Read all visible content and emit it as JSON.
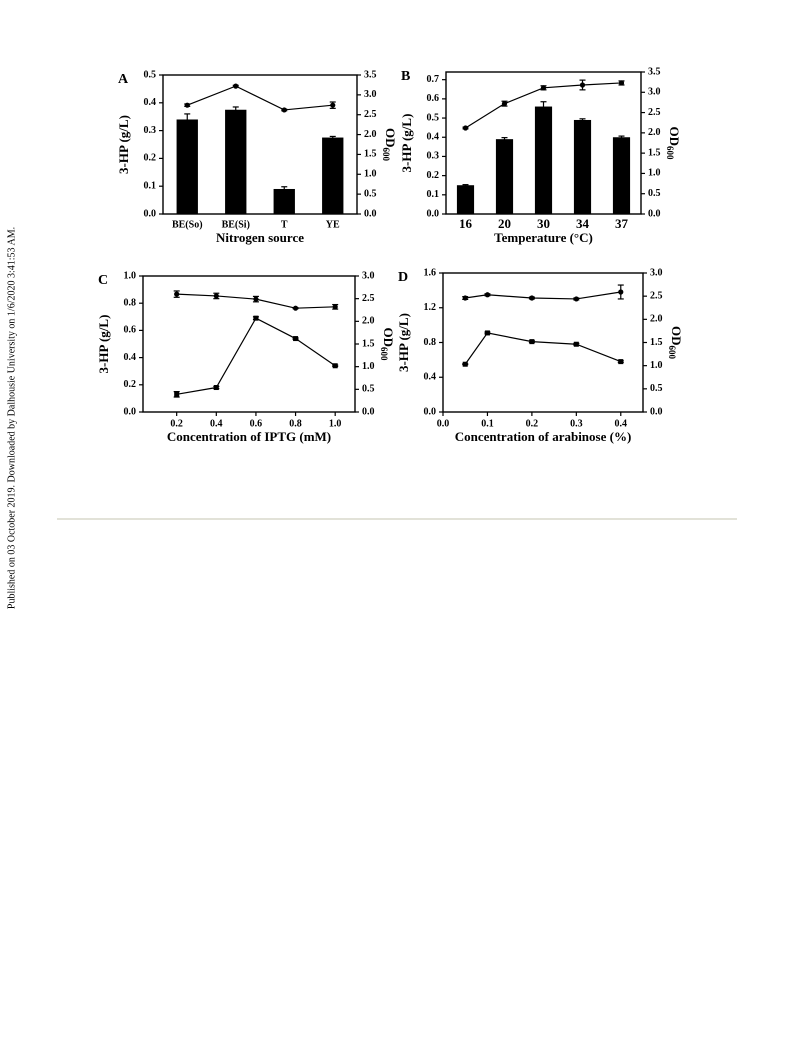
{
  "side_note": "Published on 03 October 2019. Downloaded by Dalhousie University on 1/6/2020 3:41:53 AM.",
  "chart_data": [
    {
      "type": "bar",
      "panel": "A",
      "xlabel": "Nitrogen source",
      "ylabel": "3-HP (g/L)",
      "y2label": {
        "text": "OD",
        "sub": "600"
      },
      "categories": [
        "BE(So)",
        "BE(Si)",
        "T",
        "YE"
      ],
      "ylim": [
        0,
        0.5
      ],
      "yticks": [
        {
          "value": 0,
          "label": "0.0"
        },
        0.1,
        0.2,
        0.3,
        0.4,
        0.5
      ],
      "y2lim": [
        0,
        3.5
      ],
      "y2ticks": [
        {
          "value": 0,
          "label": "0.0"
        },
        0.5,
        {
          "value": 1,
          "label": "1.0"
        },
        1.5,
        {
          "value": 2,
          "label": "2.0"
        },
        2.5,
        {
          "value": 3,
          "label": "3.0"
        },
        3.5
      ],
      "series": [
        {
          "name": "3-HP",
          "kind": "bar",
          "color": "#000000",
          "values": [
            0.34,
            0.375,
            0.09,
            0.275
          ],
          "errors": [
            0.02,
            0.01,
            0.008,
            0.004
          ]
        },
        {
          "name": "OD600",
          "kind": "line",
          "marker": "circle",
          "axis": "y2",
          "color": "#000000",
          "values": [
            2.74,
            3.22,
            2.62,
            2.74
          ],
          "errors": [
            0.03,
            0.02,
            0.02,
            0.08
          ]
        }
      ]
    },
    {
      "type": "bar",
      "panel": "B",
      "xlabel": "Temperature (°C)",
      "ylabel": "3-HP (g/L)",
      "y2label": {
        "text": "OD",
        "sub": "600"
      },
      "categories": [
        "16",
        "20",
        "30",
        "34",
        "37"
      ],
      "ylim": [
        0,
        0.74
      ],
      "yticks": [
        {
          "value": 0,
          "label": "0.0"
        },
        0.1,
        0.2,
        0.3,
        0.4,
        0.5,
        0.6,
        0.7
      ],
      "y2lim": [
        0,
        3.5
      ],
      "y2ticks": [
        {
          "value": 0,
          "label": "0.0"
        },
        0.5,
        {
          "value": 1,
          "label": "1.0"
        },
        1.5,
        {
          "value": 2,
          "label": "2.0"
        },
        2.5,
        {
          "value": 3,
          "label": "3.0"
        },
        3.5
      ],
      "series": [
        {
          "name": "3-HP",
          "kind": "bar",
          "color": "#000000",
          "values": [
            0.15,
            0.39,
            0.56,
            0.49,
            0.4
          ],
          "errors": [
            0.003,
            0.008,
            0.025,
            0.006,
            0.006
          ]
        },
        {
          "name": "OD600",
          "kind": "line",
          "marker": "circle",
          "axis": "y2",
          "color": "#000000",
          "values": [
            2.12,
            2.72,
            3.11,
            3.18,
            3.23
          ],
          "errors": [
            0.02,
            0.06,
            0.05,
            0.12,
            0.05
          ]
        }
      ]
    },
    {
      "type": "line",
      "panel": "C",
      "xlabel": "Concentration of IPTG (mM)",
      "ylabel": "3-HP (g/L)",
      "y2label": {
        "text": "OD",
        "sub": "600"
      },
      "x": [
        0.2,
        0.4,
        0.6,
        0.8,
        1.0
      ],
      "xlim": [
        0.03,
        1.1
      ],
      "xticks": [
        0.2,
        0.4,
        0.6,
        0.8,
        {
          "value": 1,
          "label": "1.0"
        }
      ],
      "ylim": [
        0,
        1
      ],
      "yticks": [
        {
          "value": 0,
          "label": "0.0"
        },
        0.2,
        0.4,
        0.6,
        0.8,
        {
          "value": 1,
          "label": "1.0"
        }
      ],
      "y2lim": [
        0,
        3
      ],
      "y2ticks": [
        {
          "value": 0,
          "label": "0.0"
        },
        0.5,
        {
          "value": 1,
          "label": "1.0"
        },
        1.5,
        {
          "value": 2,
          "label": "2.0"
        },
        2.5,
        {
          "value": 3,
          "label": "3.0"
        }
      ],
      "series": [
        {
          "name": "3-HP",
          "kind": "line",
          "marker": "square",
          "color": "#000000",
          "values": [
            0.13,
            0.18,
            0.69,
            0.54,
            0.34
          ],
          "errors": [
            0.02,
            0.008,
            0.01,
            0.005,
            0.005
          ]
        },
        {
          "name": "OD600",
          "kind": "line",
          "marker": "circle",
          "axis": "y2",
          "color": "#000000",
          "values": [
            2.6,
            2.56,
            2.49,
            2.29,
            2.32
          ],
          "errors": [
            0.07,
            0.06,
            0.06,
            0.01,
            0.05
          ]
        }
      ]
    },
    {
      "type": "line",
      "panel": "D",
      "xlabel": "Concentration of arabinose (%)",
      "ylabel": "3-HP (g/L)",
      "y2label": {
        "text": "OD",
        "sub": "600"
      },
      "x": [
        0.05,
        0.1,
        0.2,
        0.3,
        0.4
      ],
      "xlim": [
        0,
        0.45
      ],
      "xticks": [
        {
          "value": 0,
          "label": "0.0"
        },
        0.1,
        0.2,
        0.3,
        0.4
      ],
      "ylim": [
        0,
        1.6
      ],
      "yticks": [
        {
          "value": 0,
          "label": "0.0"
        },
        0.4,
        0.8,
        1.2,
        1.6
      ],
      "y2lim": [
        0,
        3
      ],
      "y2ticks": [
        {
          "value": 0,
          "label": "0.0"
        },
        0.5,
        {
          "value": 1,
          "label": "1.0"
        },
        1.5,
        {
          "value": 2,
          "label": "2.0"
        },
        2.5,
        {
          "value": 3,
          "label": "3.0"
        }
      ],
      "series": [
        {
          "name": "3-HP",
          "kind": "line",
          "marker": "square",
          "color": "#000000",
          "values": [
            0.55,
            0.91,
            0.81,
            0.78,
            0.58
          ],
          "errors": [
            0.005,
            0.01,
            0.01,
            0.01,
            0.01
          ]
        },
        {
          "name": "OD600",
          "kind": "line",
          "marker": "circle",
          "axis": "y2",
          "color": "#000000",
          "values": [
            2.46,
            2.53,
            2.46,
            2.44,
            2.59
          ],
          "errors": [
            0.03,
            0.02,
            0.02,
            0.02,
            0.15
          ]
        }
      ]
    }
  ]
}
